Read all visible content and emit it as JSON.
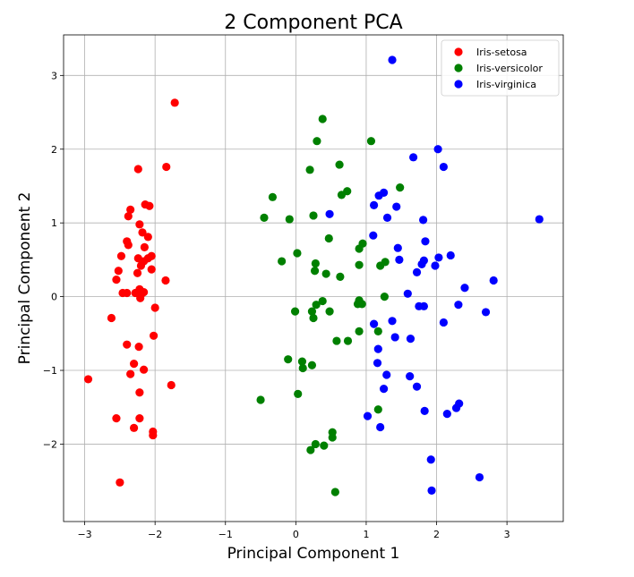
{
  "chart_data": {
    "type": "scatter",
    "title": "2 Component PCA",
    "xlabel": "Principal Component 1",
    "ylabel": "Principal Component 2",
    "xlim": [
      -3.3,
      3.8
    ],
    "ylim": [
      -3.05,
      3.55
    ],
    "xticks": [
      -3,
      -2,
      -1,
      0,
      1,
      2,
      3
    ],
    "yticks": [
      -2,
      -1,
      0,
      1,
      2,
      3
    ],
    "xtick_labels": [
      "−3",
      "−2",
      "−1",
      "0",
      "1",
      "2",
      "3"
    ],
    "ytick_labels": [
      "−2",
      "−1",
      "0",
      "1",
      "2",
      "3"
    ],
    "grid": true,
    "legend_position": "top-right",
    "series": [
      {
        "name": "Iris-setosa",
        "color": "#ff0000",
        "points": [
          [
            -1.72,
            2.63
          ],
          [
            -1.84,
            1.76
          ],
          [
            -2.24,
            1.73
          ],
          [
            -2.14,
            1.25
          ],
          [
            -2.08,
            1.23
          ],
          [
            -2.35,
            1.18
          ],
          [
            -2.38,
            1.09
          ],
          [
            -2.22,
            0.98
          ],
          [
            -2.18,
            0.87
          ],
          [
            -2.1,
            0.81
          ],
          [
            -2.4,
            0.75
          ],
          [
            -2.38,
            0.7
          ],
          [
            -2.15,
            0.67
          ],
          [
            -2.48,
            0.55
          ],
          [
            -2.24,
            0.52
          ],
          [
            -2.1,
            0.52
          ],
          [
            -2.16,
            0.48
          ],
          [
            -2.05,
            0.55
          ],
          [
            -2.2,
            0.42
          ],
          [
            -2.52,
            0.35
          ],
          [
            -2.05,
            0.37
          ],
          [
            -2.25,
            0.32
          ],
          [
            -1.85,
            0.22
          ],
          [
            -2.55,
            0.23
          ],
          [
            -2.4,
            0.05
          ],
          [
            -2.46,
            0.05
          ],
          [
            -2.22,
            0.1
          ],
          [
            -2.28,
            0.05
          ],
          [
            -2.19,
            0.04
          ],
          [
            -2.16,
            0.06
          ],
          [
            -2.21,
            -0.02
          ],
          [
            -2.0,
            -0.15
          ],
          [
            -2.62,
            -0.29
          ],
          [
            -2.02,
            -0.53
          ],
          [
            -2.4,
            -0.65
          ],
          [
            -2.23,
            -0.68
          ],
          [
            -2.3,
            -0.91
          ],
          [
            -2.16,
            -0.99
          ],
          [
            -2.35,
            -1.05
          ],
          [
            -2.95,
            -1.12
          ],
          [
            -1.77,
            -1.2
          ],
          [
            -2.22,
            -1.3
          ],
          [
            -2.55,
            -1.65
          ],
          [
            -2.22,
            -1.65
          ],
          [
            -2.3,
            -1.78
          ],
          [
            -2.03,
            -1.83
          ],
          [
            -2.03,
            -1.88
          ],
          [
            -2.5,
            -2.52
          ]
        ]
      },
      {
        "name": "Iris-versicolor",
        "color": "#008000",
        "points": [
          [
            0.38,
            2.41
          ],
          [
            0.3,
            2.11
          ],
          [
            1.07,
            2.11
          ],
          [
            0.62,
            1.79
          ],
          [
            0.2,
            1.72
          ],
          [
            1.48,
            1.48
          ],
          [
            0.73,
            1.43
          ],
          [
            0.65,
            1.38
          ],
          [
            -0.33,
            1.35
          ],
          [
            0.25,
            1.1
          ],
          [
            -0.45,
            1.07
          ],
          [
            -0.09,
            1.05
          ],
          [
            0.47,
            0.79
          ],
          [
            0.95,
            0.72
          ],
          [
            0.9,
            0.65
          ],
          [
            0.02,
            0.59
          ],
          [
            -0.2,
            0.48
          ],
          [
            1.27,
            0.47
          ],
          [
            0.28,
            0.45
          ],
          [
            0.9,
            0.43
          ],
          [
            1.2,
            0.42
          ],
          [
            0.27,
            0.35
          ],
          [
            0.43,
            0.31
          ],
          [
            0.63,
            0.27
          ],
          [
            1.26,
            0.0
          ],
          [
            0.9,
            -0.05
          ],
          [
            0.88,
            -0.1
          ],
          [
            0.94,
            -0.1
          ],
          [
            0.38,
            -0.06
          ],
          [
            0.29,
            -0.11
          ],
          [
            -0.01,
            -0.2
          ],
          [
            0.23,
            -0.2
          ],
          [
            0.48,
            -0.2
          ],
          [
            0.25,
            -0.29
          ],
          [
            1.17,
            -0.47
          ],
          [
            0.9,
            -0.47
          ],
          [
            0.58,
            -0.6
          ],
          [
            0.74,
            -0.6
          ],
          [
            -0.11,
            -0.85
          ],
          [
            0.09,
            -0.88
          ],
          [
            0.23,
            -0.93
          ],
          [
            0.1,
            -0.97
          ],
          [
            0.03,
            -1.32
          ],
          [
            -0.5,
            -1.4
          ],
          [
            1.17,
            -1.53
          ],
          [
            0.52,
            -1.84
          ],
          [
            0.52,
            -1.91
          ],
          [
            0.28,
            -2.0
          ],
          [
            0.4,
            -2.02
          ],
          [
            0.21,
            -2.08
          ],
          [
            0.56,
            -2.65
          ]
        ]
      },
      {
        "name": "Iris-virginica",
        "color": "#0000ff",
        "points": [
          [
            1.37,
            3.21
          ],
          [
            2.02,
            2.0
          ],
          [
            1.67,
            1.89
          ],
          [
            2.1,
            1.76
          ],
          [
            1.25,
            1.41
          ],
          [
            1.18,
            1.37
          ],
          [
            1.11,
            1.24
          ],
          [
            1.43,
            1.22
          ],
          [
            0.48,
            1.12
          ],
          [
            1.3,
            1.07
          ],
          [
            1.81,
            1.04
          ],
          [
            3.46,
            1.05
          ],
          [
            1.1,
            0.83
          ],
          [
            1.84,
            0.75
          ],
          [
            1.45,
            0.66
          ],
          [
            2.2,
            0.56
          ],
          [
            2.03,
            0.53
          ],
          [
            1.82,
            0.49
          ],
          [
            1.98,
            0.42
          ],
          [
            1.79,
            0.44
          ],
          [
            1.47,
            0.5
          ],
          [
            1.72,
            0.33
          ],
          [
            2.81,
            0.22
          ],
          [
            2.4,
            0.12
          ],
          [
            1.59,
            0.04
          ],
          [
            1.75,
            -0.13
          ],
          [
            1.82,
            -0.13
          ],
          [
            2.31,
            -0.11
          ],
          [
            2.7,
            -0.21
          ],
          [
            1.37,
            -0.33
          ],
          [
            2.1,
            -0.35
          ],
          [
            1.11,
            -0.37
          ],
          [
            1.41,
            -0.55
          ],
          [
            1.63,
            -0.57
          ],
          [
            1.17,
            -0.71
          ],
          [
            1.16,
            -0.9
          ],
          [
            1.29,
            -1.06
          ],
          [
            1.62,
            -1.08
          ],
          [
            1.72,
            -1.22
          ],
          [
            1.25,
            -1.25
          ],
          [
            2.32,
            -1.45
          ],
          [
            2.28,
            -1.51
          ],
          [
            1.83,
            -1.55
          ],
          [
            2.15,
            -1.59
          ],
          [
            1.02,
            -1.62
          ],
          [
            1.2,
            -1.77
          ],
          [
            1.92,
            -2.21
          ],
          [
            2.61,
            -2.45
          ],
          [
            1.93,
            -2.63
          ]
        ]
      }
    ]
  }
}
